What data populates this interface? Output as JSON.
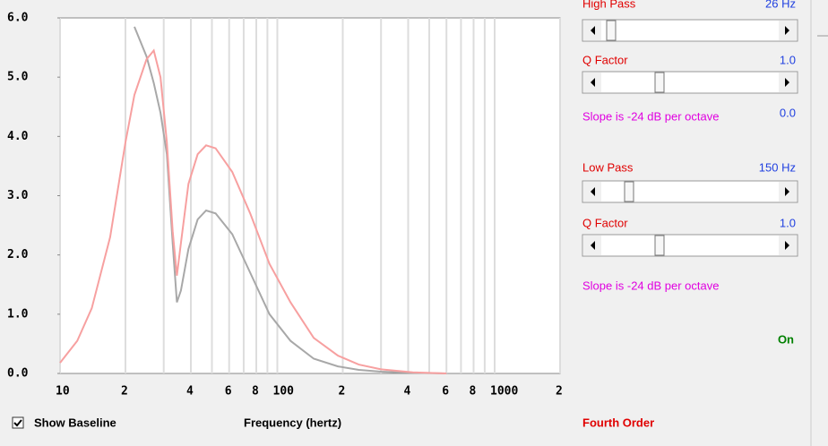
{
  "chart_data": {
    "type": "line",
    "x_label": "Frequency (hertz)",
    "log_x": true,
    "xlim": [
      10,
      2000
    ],
    "ylim": [
      0,
      6
    ],
    "xticks": [
      10,
      {
        "value": 20,
        "label": "2"
      },
      {
        "value": 40,
        "label": "4"
      },
      {
        "value": 60,
        "label": "6"
      },
      {
        "value": 80,
        "label": "8"
      },
      100,
      {
        "value": 200,
        "label": "2"
      },
      {
        "value": 400,
        "label": "4"
      },
      {
        "value": 600,
        "label": "6"
      },
      {
        "value": 800,
        "label": "8"
      },
      1000,
      {
        "value": 2000,
        "label": "2"
      }
    ],
    "xgrid_minor": [
      30,
      50,
      70,
      90,
      300,
      500,
      700,
      900
    ],
    "yticks": [
      {
        "value": 0,
        "label": "0.0"
      },
      {
        "value": 1,
        "label": "1.0"
      },
      {
        "value": 2,
        "label": "2.0"
      },
      {
        "value": 3,
        "label": "3.0"
      },
      {
        "value": 4,
        "label": "4.0"
      },
      {
        "value": 5,
        "label": "5.0"
      },
      {
        "value": 6,
        "label": "6.0"
      }
    ],
    "x": [
      10,
      12,
      14,
      17,
      20,
      22,
      25,
      27,
      29,
      31,
      33,
      34.5,
      36,
      39,
      43,
      47,
      52,
      62,
      75,
      92,
      115,
      147,
      190,
      237,
      300,
      420,
      600
    ],
    "series": [
      {
        "name": "Baseline",
        "color": "#a8a8a8",
        "values": [
          null,
          null,
          null,
          null,
          null,
          5.85,
          5.35,
          4.9,
          4.4,
          3.7,
          2.2,
          1.2,
          1.4,
          2.1,
          2.6,
          2.75,
          2.7,
          2.35,
          1.7,
          1.0,
          0.55,
          0.25,
          0.12,
          0.06,
          0.03,
          0.01,
          0.0
        ]
      },
      {
        "name": "Response",
        "color": "#f7a0a0",
        "values": [
          0.18,
          0.55,
          1.1,
          2.3,
          3.9,
          4.7,
          5.3,
          5.45,
          5.0,
          3.9,
          2.4,
          1.65,
          2.2,
          3.2,
          3.7,
          3.85,
          3.8,
          3.4,
          2.7,
          1.85,
          1.2,
          0.6,
          0.3,
          0.15,
          0.07,
          0.02,
          0.0
        ]
      }
    ]
  },
  "controls": {
    "high_pass": {
      "label": "High Pass",
      "value": "26 Hz"
    },
    "high_q": {
      "label": "Q Factor",
      "value": "1.0"
    },
    "high_slope": {
      "label": "Slope is -24 dB per octave",
      "value": "0.0"
    },
    "low_pass": {
      "label": "Low Pass",
      "value": "150 Hz"
    },
    "low_q": {
      "label": "Q Factor",
      "value": "1.0"
    },
    "low_slope": {
      "label": "Slope is -24 dB per octave"
    },
    "status": "On",
    "show_baseline": "Show Baseline",
    "order": "Fourth Order"
  }
}
